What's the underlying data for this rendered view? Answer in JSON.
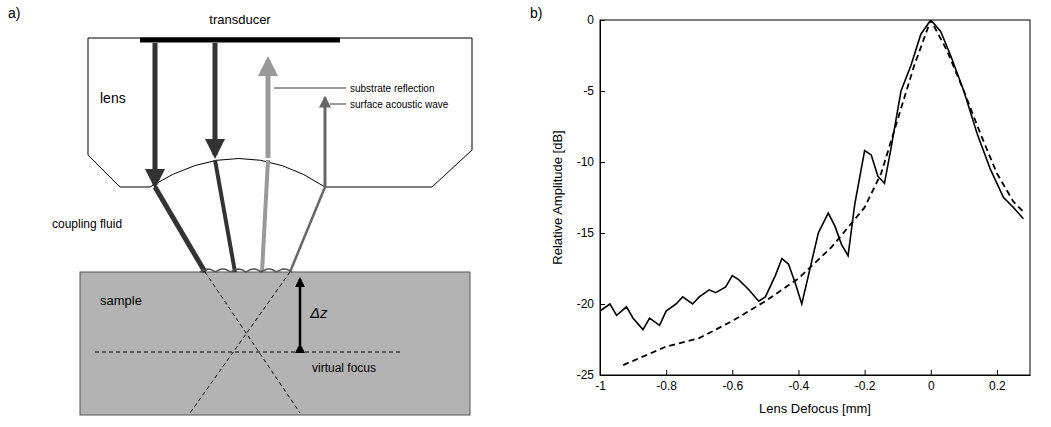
{
  "diagram": {
    "panel_label": "a)",
    "transducer": "transducer",
    "lens": "lens",
    "substrate_reflection": "substrate reflection",
    "surface_acoustic_wave": "surface acoustic wave",
    "coupling_fluid": "coupling fluid",
    "sample": "sample",
    "delta_z": "Δz",
    "virtual_focus": "virtual focus"
  },
  "chart_data": {
    "type": "line",
    "panel_label": "b)",
    "x_label": "Lens Defocus [mm]",
    "y_label": "Relative Amplitude [dB]",
    "xlim": [
      -1,
      0.3
    ],
    "xticks": [
      -1,
      -0.8,
      -0.6,
      -0.4,
      -0.2,
      0,
      0.2
    ],
    "ylim": [
      -25,
      0
    ],
    "yticks": [
      -25,
      -20,
      -15,
      -10,
      -5,
      0
    ],
    "grid": false,
    "series": [
      {
        "color": "#000000",
        "line_style": "solid",
        "x": [
          -1,
          -0.97,
          -0.95,
          -0.92,
          -0.9,
          -0.87,
          -0.85,
          -0.82,
          -0.8,
          -0.77,
          -0.75,
          -0.72,
          -0.7,
          -0.67,
          -0.65,
          -0.62,
          -0.6,
          -0.58,
          -0.55,
          -0.52,
          -0.5,
          -0.47,
          -0.45,
          -0.43,
          -0.41,
          -0.39,
          -0.37,
          -0.34,
          -0.31,
          -0.29,
          -0.27,
          -0.25,
          -0.23,
          -0.2,
          -0.18,
          -0.16,
          -0.14,
          -0.12,
          -0.09,
          -0.06,
          -0.03,
          0,
          0.03,
          0.06,
          0.1,
          0.14,
          0.18,
          0.22,
          0.25,
          0.28
        ],
        "values": [
          -20.5,
          -20,
          -20.8,
          -20.2,
          -21,
          -21.8,
          -21,
          -21.5,
          -20.5,
          -20,
          -19.5,
          -20,
          -19.5,
          -19,
          -19.2,
          -18.8,
          -18,
          -18.3,
          -19,
          -19.8,
          -19.5,
          -18,
          -16.8,
          -17.2,
          -18.5,
          -20,
          -18,
          -15,
          -13.6,
          -14.5,
          -15.8,
          -16.6,
          -13,
          -9.2,
          -9.5,
          -11,
          -11.5,
          -9,
          -5,
          -3.2,
          -1,
          0,
          -0.8,
          -2.5,
          -5,
          -8,
          -10.5,
          -12.5,
          -13.2,
          -14
        ]
      },
      {
        "color": "#000000",
        "line_style": "dashed",
        "x": [
          -0.93,
          -0.9,
          -0.8,
          -0.7,
          -0.6,
          -0.5,
          -0.4,
          -0.3,
          -0.2,
          -0.15,
          -0.1,
          -0.05,
          0,
          0.05,
          0.1,
          0.15,
          0.2,
          0.25,
          0.28
        ],
        "values": [
          -24.3,
          -24,
          -23,
          -22.4,
          -21.2,
          -19.8,
          -18.2,
          -16,
          -13.2,
          -10.8,
          -7,
          -3.2,
          0,
          -2.2,
          -5,
          -8,
          -10.8,
          -12.8,
          -13.5
        ]
      }
    ]
  }
}
